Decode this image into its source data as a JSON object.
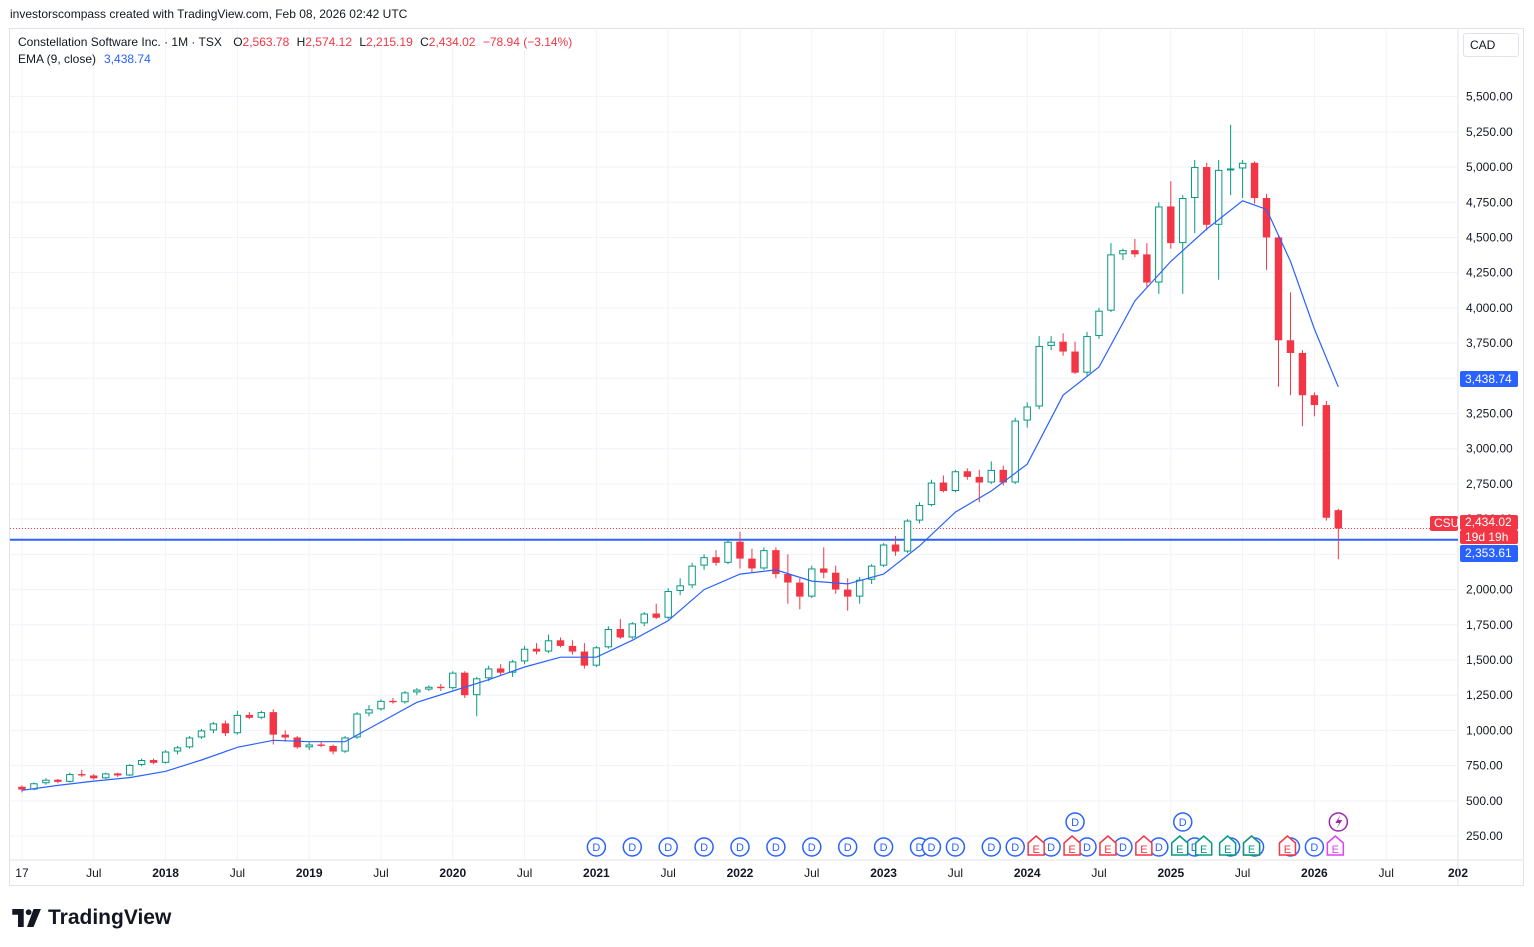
{
  "header": {
    "attribution": "investorscompass created with TradingView.com, Feb 08, 2026 02:42 UTC"
  },
  "legend": {
    "symbol": "Constellation Software Inc. · 1M · TSX",
    "open_label": "O",
    "open": "2,563.78",
    "high_label": "H",
    "high": "2,574.12",
    "low_label": "L",
    "low": "2,215.19",
    "close_label": "C",
    "close": "2,434.02",
    "change": "−78.94 (−3.14%)",
    "ema_label": "EMA (9, close)",
    "ema_value": "3,438.74"
  },
  "currency": "CAD",
  "price_axis": {
    "labels": [
      "5,500.00",
      "5,250.00",
      "5,000.00",
      "4,750.00",
      "4,500.00",
      "4,250.00",
      "4,000.00",
      "3,750.00",
      "3,500.00",
      "3,250.00",
      "3,000.00",
      "2,750.00",
      "2,500.00",
      "2,250.00",
      "2,000.00",
      "1,750.00",
      "1,500.00",
      "1,250.00",
      "1,000.00",
      "750.00",
      "500.00",
      "250.00"
    ],
    "ema_tag": "3,438.74",
    "symbol_tag": "CSU",
    "last_price_tag": "2,434.02",
    "countdown_tag": "19d 19h",
    "line_tag": "2,353.61"
  },
  "time_axis": {
    "labels": [
      {
        "t": 2017.0,
        "text": "17",
        "bold": false
      },
      {
        "t": 2017.5,
        "text": "Jul",
        "bold": false
      },
      {
        "t": 2018.0,
        "text": "2018",
        "bold": true
      },
      {
        "t": 2018.5,
        "text": "Jul",
        "bold": false
      },
      {
        "t": 2019.0,
        "text": "2019",
        "bold": true
      },
      {
        "t": 2019.5,
        "text": "Jul",
        "bold": false
      },
      {
        "t": 2020.0,
        "text": "2020",
        "bold": true
      },
      {
        "t": 2020.5,
        "text": "Jul",
        "bold": false
      },
      {
        "t": 2021.0,
        "text": "2021",
        "bold": true
      },
      {
        "t": 2021.5,
        "text": "Jul",
        "bold": false
      },
      {
        "t": 2022.0,
        "text": "2022",
        "bold": true
      },
      {
        "t": 2022.5,
        "text": "Jul",
        "bold": false
      },
      {
        "t": 2023.0,
        "text": "2023",
        "bold": true
      },
      {
        "t": 2023.5,
        "text": "Jul",
        "bold": false
      },
      {
        "t": 2024.0,
        "text": "2024",
        "bold": true
      },
      {
        "t": 2024.5,
        "text": "Jul",
        "bold": false
      },
      {
        "t": 2025.0,
        "text": "2025",
        "bold": true
      },
      {
        "t": 2025.5,
        "text": "Jul",
        "bold": false
      },
      {
        "t": 2026.0,
        "text": "2026",
        "bold": true
      },
      {
        "t": 2026.5,
        "text": "Jul",
        "bold": false
      },
      {
        "t": 2027.0,
        "text": "202",
        "bold": true
      }
    ]
  },
  "chart_data": {
    "type": "candlestick",
    "interval": "1M",
    "symbol": "CSU",
    "exchange": "TSX",
    "y_range": [
      80,
      5760
    ],
    "x_range": [
      "2016-12",
      "2027-01"
    ],
    "colors": {
      "up": "#089981",
      "down": "#f23645",
      "ema": "#2962ff",
      "hline": "#2962ff",
      "last": "#f23645"
    },
    "horizontal_line": 2353.61,
    "last_close": 2434.02,
    "candles": [
      [
        "2017-01",
        600,
        610,
        560,
        580
      ],
      [
        "2017-02",
        580,
        630,
        575,
        625
      ],
      [
        "2017-03",
        625,
        660,
        615,
        650
      ],
      [
        "2017-04",
        650,
        655,
        625,
        635
      ],
      [
        "2017-05",
        635,
        700,
        630,
        690
      ],
      [
        "2017-06",
        690,
        720,
        670,
        680
      ],
      [
        "2017-07",
        680,
        690,
        650,
        660
      ],
      [
        "2017-08",
        660,
        700,
        655,
        695
      ],
      [
        "2017-09",
        695,
        700,
        670,
        680
      ],
      [
        "2017-10",
        680,
        760,
        675,
        755
      ],
      [
        "2017-11",
        755,
        800,
        745,
        790
      ],
      [
        "2017-12",
        790,
        800,
        760,
        770
      ],
      [
        "2018-01",
        770,
        860,
        765,
        850
      ],
      [
        "2018-02",
        850,
        890,
        830,
        880
      ],
      [
        "2018-03",
        880,
        960,
        870,
        950
      ],
      [
        "2018-04",
        950,
        1010,
        940,
        1000
      ],
      [
        "2018-05",
        1000,
        1060,
        980,
        1050
      ],
      [
        "2018-06",
        1050,
        1070,
        960,
        980
      ],
      [
        "2018-07",
        980,
        1140,
        970,
        1110
      ],
      [
        "2018-08",
        1110,
        1130,
        1080,
        1090
      ],
      [
        "2018-09",
        1090,
        1140,
        1080,
        1130
      ],
      [
        "2018-10",
        1130,
        1150,
        900,
        970
      ],
      [
        "2018-11",
        970,
        1000,
        920,
        950
      ],
      [
        "2018-12",
        950,
        960,
        870,
        880
      ],
      [
        "2019-01",
        880,
        920,
        860,
        900
      ],
      [
        "2019-02",
        900,
        920,
        880,
        890
      ],
      [
        "2019-03",
        890,
        900,
        830,
        850
      ],
      [
        "2019-04",
        850,
        960,
        840,
        950
      ],
      [
        "2019-05",
        950,
        1130,
        940,
        1120
      ],
      [
        "2019-06",
        1120,
        1180,
        1100,
        1150
      ],
      [
        "2019-07",
        1150,
        1220,
        1140,
        1210
      ],
      [
        "2019-08",
        1210,
        1230,
        1190,
        1200
      ],
      [
        "2019-09",
        1200,
        1280,
        1190,
        1270
      ],
      [
        "2019-10",
        1270,
        1300,
        1250,
        1290
      ],
      [
        "2019-11",
        1290,
        1320,
        1280,
        1310
      ],
      [
        "2019-12",
        1310,
        1330,
        1280,
        1300
      ],
      [
        "2020-01",
        1300,
        1420,
        1290,
        1410
      ],
      [
        "2020-02",
        1410,
        1420,
        1230,
        1250
      ],
      [
        "2020-03",
        1250,
        1380,
        1100,
        1370
      ],
      [
        "2020-04",
        1370,
        1460,
        1350,
        1440
      ],
      [
        "2020-05",
        1440,
        1470,
        1390,
        1410
      ],
      [
        "2020-06",
        1410,
        1500,
        1380,
        1490
      ],
      [
        "2020-07",
        1490,
        1600,
        1470,
        1580
      ],
      [
        "2020-08",
        1580,
        1620,
        1540,
        1560
      ],
      [
        "2020-09",
        1560,
        1680,
        1550,
        1640
      ],
      [
        "2020-10",
        1640,
        1660,
        1590,
        1600
      ],
      [
        "2020-11",
        1600,
        1640,
        1540,
        1560
      ],
      [
        "2020-12",
        1560,
        1620,
        1440,
        1460
      ],
      [
        "2021-01",
        1460,
        1600,
        1450,
        1590
      ],
      [
        "2021-02",
        1590,
        1740,
        1580,
        1720
      ],
      [
        "2021-03",
        1720,
        1790,
        1650,
        1660
      ],
      [
        "2021-04",
        1660,
        1770,
        1650,
        1760
      ],
      [
        "2021-05",
        1760,
        1840,
        1740,
        1830
      ],
      [
        "2021-06",
        1830,
        1900,
        1790,
        1800
      ],
      [
        "2021-07",
        1800,
        2010,
        1790,
        1990
      ],
      [
        "2021-08",
        1990,
        2080,
        1960,
        2030
      ],
      [
        "2021-09",
        2030,
        2190,
        2010,
        2170
      ],
      [
        "2021-10",
        2170,
        2250,
        2140,
        2230
      ],
      [
        "2021-11",
        2230,
        2280,
        2170,
        2190
      ],
      [
        "2021-12",
        2190,
        2350,
        2180,
        2340
      ],
      [
        "2022-01",
        2340,
        2410,
        2150,
        2220
      ],
      [
        "2022-02",
        2220,
        2290,
        2120,
        2150
      ],
      [
        "2022-03",
        2150,
        2300,
        2140,
        2280
      ],
      [
        "2022-04",
        2280,
        2300,
        2080,
        2110
      ],
      [
        "2022-05",
        2110,
        2250,
        1900,
        2050
      ],
      [
        "2022-06",
        2050,
        2080,
        1860,
        1950
      ],
      [
        "2022-07",
        1950,
        2170,
        1940,
        2150
      ],
      [
        "2022-08",
        2150,
        2300,
        2080,
        2120
      ],
      [
        "2022-09",
        2120,
        2170,
        1970,
        2000
      ],
      [
        "2022-10",
        2000,
        2080,
        1850,
        1950
      ],
      [
        "2022-11",
        1950,
        2090,
        1900,
        2070
      ],
      [
        "2022-12",
        2070,
        2180,
        2040,
        2170
      ],
      [
        "2023-01",
        2170,
        2330,
        2160,
        2320
      ],
      [
        "2023-02",
        2320,
        2380,
        2240,
        2270
      ],
      [
        "2023-03",
        2270,
        2500,
        2260,
        2490
      ],
      [
        "2023-04",
        2490,
        2620,
        2470,
        2600
      ],
      [
        "2023-05",
        2600,
        2780,
        2590,
        2760
      ],
      [
        "2023-06",
        2760,
        2810,
        2690,
        2700
      ],
      [
        "2023-07",
        2700,
        2850,
        2690,
        2840
      ],
      [
        "2023-08",
        2840,
        2860,
        2780,
        2800
      ],
      [
        "2023-09",
        2800,
        2850,
        2620,
        2760
      ],
      [
        "2023-10",
        2760,
        2910,
        2750,
        2850
      ],
      [
        "2023-11",
        2850,
        2880,
        2740,
        2760
      ],
      [
        "2023-12",
        2760,
        3220,
        2750,
        3200
      ],
      [
        "2024-01",
        3200,
        3330,
        3150,
        3300
      ],
      [
        "2024-02",
        3300,
        3800,
        3280,
        3730
      ],
      [
        "2024-03",
        3730,
        3800,
        3700,
        3760
      ],
      [
        "2024-04",
        3760,
        3820,
        3660,
        3690
      ],
      [
        "2024-05",
        3690,
        3760,
        3530,
        3540
      ],
      [
        "2024-06",
        3540,
        3830,
        3520,
        3800
      ],
      [
        "2024-07",
        3800,
        4000,
        3780,
        3980
      ],
      [
        "2024-08",
        3980,
        4460,
        3970,
        4380
      ],
      [
        "2024-09",
        4380,
        4420,
        4340,
        4410
      ],
      [
        "2024-10",
        4410,
        4490,
        4360,
        4380
      ],
      [
        "2024-11",
        4380,
        4460,
        4150,
        4180
      ],
      [
        "2024-12",
        4180,
        4750,
        4100,
        4720
      ],
      [
        "2025-01",
        4720,
        4900,
        4420,
        4460
      ],
      [
        "2025-02",
        4460,
        4800,
        4100,
        4780
      ],
      [
        "2025-03",
        4780,
        5050,
        4530,
        5000
      ],
      [
        "2025-04",
        5000,
        5030,
        4550,
        4590
      ],
      [
        "2025-05",
        4590,
        5050,
        4200,
        4980
      ],
      [
        "2025-06",
        4980,
        5300,
        4800,
        4990
      ],
      [
        "2025-07",
        4990,
        5050,
        4780,
        5030
      ],
      [
        "2025-08",
        5030,
        5040,
        4740,
        4780
      ],
      [
        "2025-09",
        4780,
        4810,
        4270,
        4500
      ],
      [
        "2025-10",
        4500,
        4510,
        3440,
        3770
      ],
      [
        "2025-11",
        3770,
        4110,
        3380,
        3680
      ],
      [
        "2025-12",
        3680,
        3700,
        3160,
        3380
      ],
      [
        "2026-01",
        3380,
        3400,
        3230,
        3310
      ],
      [
        "2026-02",
        3310,
        3340,
        2490,
        2510
      ],
      [
        "2026-03",
        2563.78,
        2574.12,
        2215.19,
        2434.02
      ]
    ],
    "ema": [
      [
        "2017-01",
        575
      ],
      [
        "2017-04",
        610
      ],
      [
        "2017-07",
        640
      ],
      [
        "2017-10",
        665
      ],
      [
        "2018-01",
        710
      ],
      [
        "2018-04",
        790
      ],
      [
        "2018-07",
        880
      ],
      [
        "2018-10",
        930
      ],
      [
        "2019-01",
        920
      ],
      [
        "2019-04",
        920
      ],
      [
        "2019-07",
        1060
      ],
      [
        "2019-10",
        1200
      ],
      [
        "2020-01",
        1280
      ],
      [
        "2020-04",
        1360
      ],
      [
        "2020-07",
        1450
      ],
      [
        "2020-10",
        1520
      ],
      [
        "2021-01",
        1520
      ],
      [
        "2021-04",
        1640
      ],
      [
        "2021-07",
        1780
      ],
      [
        "2021-10",
        2000
      ],
      [
        "2022-01",
        2110
      ],
      [
        "2022-04",
        2140
      ],
      [
        "2022-07",
        2060
      ],
      [
        "2022-10",
        2040
      ],
      [
        "2023-01",
        2110
      ],
      [
        "2023-04",
        2310
      ],
      [
        "2023-07",
        2550
      ],
      [
        "2023-10",
        2700
      ],
      [
        "2024-01",
        2890
      ],
      [
        "2024-04",
        3380
      ],
      [
        "2024-07",
        3580
      ],
      [
        "2024-10",
        4050
      ],
      [
        "2025-01",
        4330
      ],
      [
        "2025-04",
        4560
      ],
      [
        "2025-07",
        4760
      ],
      [
        "2025-09",
        4700
      ],
      [
        "2025-11",
        4330
      ],
      [
        "2026-01",
        3850
      ],
      [
        "2026-03",
        3438.74
      ]
    ],
    "event_markers": {
      "dividends": [
        "2021-01",
        "2021-04",
        "2021-07",
        "2021-10",
        "2022-01",
        "2022-04",
        "2022-07",
        "2022-10",
        "2023-01",
        "2023-04",
        "2023-05",
        "2023-07",
        "2023-10",
        "2023-12",
        "2024-03",
        "2024-06",
        "2024-09",
        "2024-12",
        "2025-03",
        "2025-06",
        "2025-08",
        "2025-11",
        "2026-01"
      ],
      "dividends_upper": [
        "2024-05",
        "2025-02"
      ],
      "earnings_missed": [
        "2024-02",
        "2024-05",
        "2024-08",
        "2024-11",
        "2025-08",
        "2025-11"
      ],
      "earnings_beat": [
        "2025-02",
        "2025-04",
        "2025-06",
        "2025-08"
      ],
      "earnings_upcoming": [
        "2026-03"
      ],
      "split_or_news": [
        "2026-03"
      ]
    }
  }
}
